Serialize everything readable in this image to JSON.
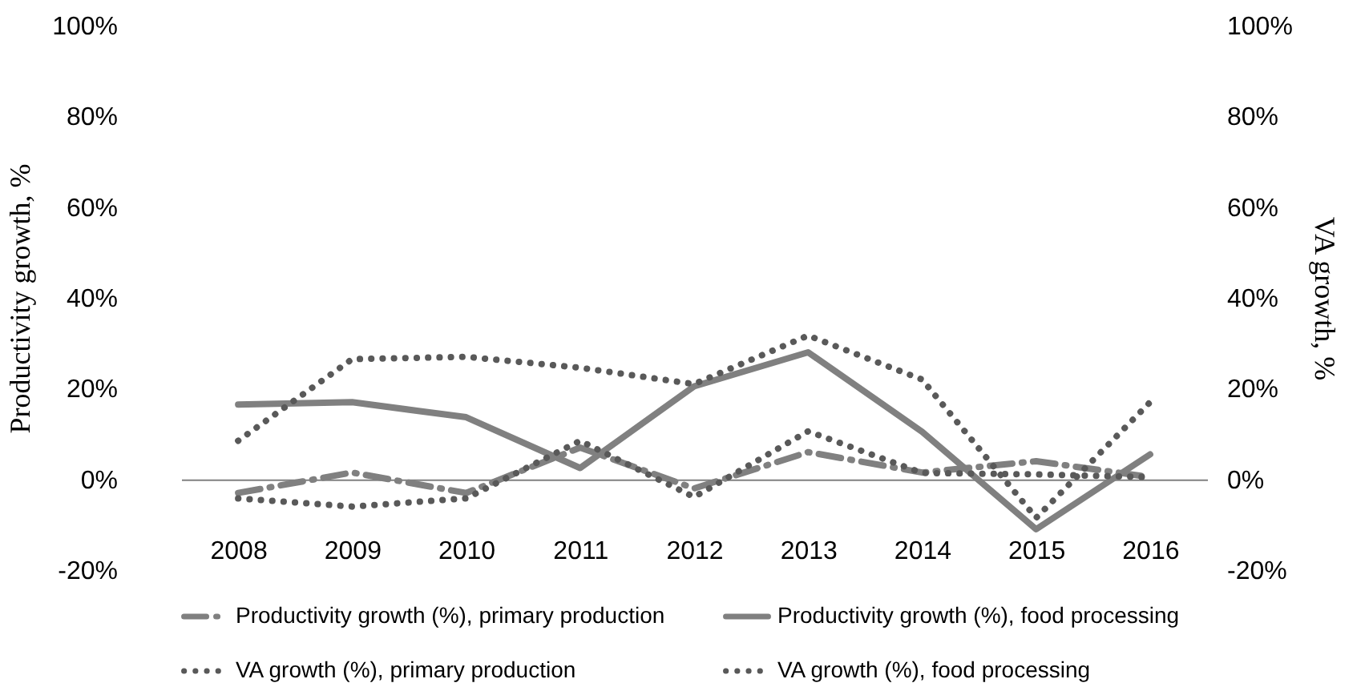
{
  "chart_data": {
    "type": "line",
    "xlabel": null,
    "ylabel": "Productivity growth, %",
    "y2label": "VA growth, %",
    "categories": [
      "2008",
      "2009",
      "2010",
      "2011",
      "2012",
      "2013",
      "2014",
      "2015",
      "2016"
    ],
    "series": [
      {
        "name": "Productivity growth (%), primary production",
        "color": "#808080",
        "line_style": "dashed",
        "values": [
          -3,
          1.5,
          -3,
          7,
          -2,
          6,
          1.5,
          4,
          0.5
        ]
      },
      {
        "name": "Productivity growth (%), food processing",
        "color": "#808080",
        "line_style": "solid",
        "values": [
          16.5,
          17,
          13.7,
          2.5,
          20.5,
          28,
          10.5,
          -11,
          5.5
        ]
      },
      {
        "name": "VA growth (%), primary production",
        "color": "#595959",
        "line_style": "dotted",
        "values": [
          -4.2,
          -6,
          -4.2,
          8.5,
          -3.9,
          10.6,
          1.4,
          1.1,
          0.5
        ]
      },
      {
        "name": "VA growth (%), food processing",
        "color": "#595959",
        "line_style": "dotted",
        "axis": "y2",
        "values": [
          8.5,
          26.5,
          27,
          24.6,
          21,
          31.7,
          22,
          -8.5,
          17
        ]
      }
    ],
    "ylim": [
      -20,
      100
    ],
    "yticks": [
      {
        "value": -20,
        "label": "-20%"
      },
      {
        "value": 0,
        "label": "0%"
      },
      {
        "value": 20,
        "label": "20%"
      },
      {
        "value": 40,
        "label": "40%"
      },
      {
        "value": 60,
        "label": "60%"
      },
      {
        "value": 80,
        "label": "80%"
      },
      {
        "value": 100,
        "label": "100%"
      }
    ],
    "y2lim": [
      -20,
      100
    ],
    "y2ticks": [
      {
        "value": -20,
        "label": "-20%"
      },
      {
        "value": 0,
        "label": "0%"
      },
      {
        "value": 20,
        "label": "20%"
      },
      {
        "value": 40,
        "label": "40%"
      },
      {
        "value": 60,
        "label": "60%"
      },
      {
        "value": 80,
        "label": "80%"
      },
      {
        "value": 100,
        "label": "100%"
      }
    ],
    "grid": false,
    "legend": "bottom",
    "marker": "none"
  }
}
